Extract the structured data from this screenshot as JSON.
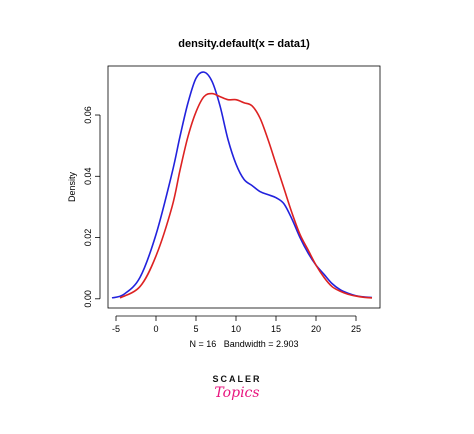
{
  "chart_data": {
    "type": "line",
    "title": "density.default(x = data1)",
    "xlabel": "N = 16   Bandwidth = 2.903",
    "ylabel": "Density",
    "xlim": [
      -6,
      28
    ],
    "ylim": [
      -0.003,
      0.076
    ],
    "x_ticks": [
      "-5",
      "0",
      "5",
      "10",
      "15",
      "20",
      "25"
    ],
    "x_tick_values": [
      -5,
      0,
      5,
      10,
      15,
      20,
      25
    ],
    "y_ticks": [
      "0.00",
      "0.02",
      "0.04",
      "0.06"
    ],
    "y_tick_values": [
      0,
      0.02,
      0.04,
      0.06
    ],
    "grid": false,
    "series": [
      {
        "color": "#2222dd",
        "x": [
          -5.5,
          -4,
          -2,
          0,
          2,
          3,
          4,
          5,
          6,
          7,
          8,
          9,
          10,
          11,
          12,
          13,
          14,
          15,
          16,
          17,
          18,
          19,
          20,
          21,
          22,
          23,
          24,
          25,
          26,
          27
        ],
        "y": [
          0.0003,
          0.0015,
          0.007,
          0.021,
          0.041,
          0.053,
          0.064,
          0.072,
          0.074,
          0.071,
          0.063,
          0.052,
          0.044,
          0.039,
          0.037,
          0.035,
          0.034,
          0.033,
          0.031,
          0.026,
          0.02,
          0.015,
          0.011,
          0.008,
          0.005,
          0.003,
          0.0018,
          0.001,
          0.0006,
          0.0004
        ]
      },
      {
        "color": "#dd2222",
        "x": [
          -4.5,
          -2,
          0,
          2,
          3,
          4,
          5,
          6,
          7,
          8,
          9,
          10,
          11,
          12,
          13,
          14,
          15,
          16,
          17,
          18,
          19,
          20,
          21,
          22,
          23,
          24,
          25,
          26,
          27
        ],
        "y": [
          0.0003,
          0.004,
          0.014,
          0.03,
          0.042,
          0.053,
          0.061,
          0.066,
          0.067,
          0.066,
          0.065,
          0.065,
          0.064,
          0.063,
          0.059,
          0.052,
          0.044,
          0.036,
          0.028,
          0.021,
          0.016,
          0.011,
          0.007,
          0.004,
          0.0025,
          0.0015,
          0.0009,
          0.0005,
          0.0003
        ]
      }
    ]
  },
  "logo": {
    "top": "SCALER",
    "bottom": "Topics"
  }
}
